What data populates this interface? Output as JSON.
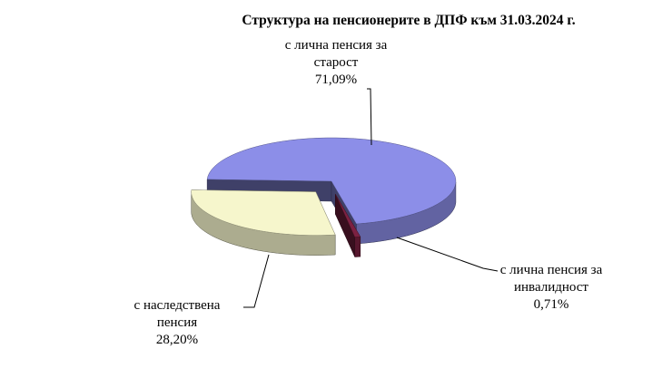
{
  "chart_data": {
    "type": "pie3d",
    "title": "Структура на пенсионерите в ДПФ към 31.03.2024 г.",
    "categories": [
      "с лична пенсия за старост",
      "с лична пенсия за инвалидност",
      "с наследствена пенсия"
    ],
    "values": [
      71.09,
      0.71,
      28.2
    ],
    "value_labels": [
      "71,09%",
      "0,71%",
      "28,20%"
    ],
    "colors": [
      "#8c8ee8",
      "#7c2142",
      "#f6f6cc"
    ]
  }
}
